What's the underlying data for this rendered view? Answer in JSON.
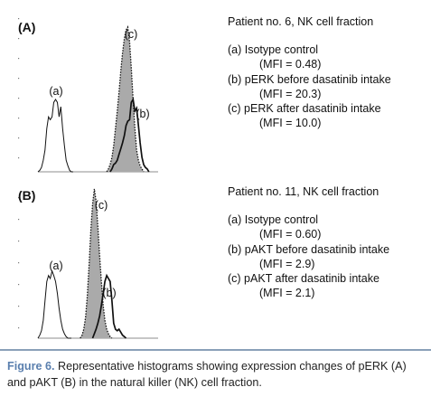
{
  "chart_data": [
    {
      "type": "histogram",
      "panel_label": "(A)",
      "title": "Patient no. 6, NK cell fraction",
      "series": [
        {
          "name": "(a) Isotype control",
          "label": "(a)",
          "style": "solid",
          "fill": "none",
          "mfi": "(MFI = 0.48)",
          "x": [
            0.5,
            0.6,
            0.7,
            0.8,
            0.9,
            1.0,
            1.1,
            1.2,
            1.3,
            1.4,
            1.5,
            1.6,
            1.7,
            1.8,
            1.9,
            2.0,
            2.1,
            2.2,
            2.3,
            2.4,
            2.5
          ],
          "y": [
            0,
            0.01,
            0.03,
            0.08,
            0.15,
            0.3,
            0.38,
            0.36,
            0.38,
            0.48,
            0.5,
            0.48,
            0.38,
            0.45,
            0.3,
            0.18,
            0.08,
            0.04,
            0.01,
            0,
            0
          ]
        },
        {
          "name": "(b) pERK before dasatinib intake",
          "label": "(b)",
          "style": "solid-bold",
          "fill": "none",
          "mfi": "(MFI = 20.3)",
          "x": [
            4.6,
            4.7,
            4.8,
            4.9,
            5.0,
            5.1,
            5.2,
            5.3,
            5.4,
            5.5,
            5.6,
            5.7,
            5.8,
            5.9,
            6.0,
            6.1,
            6.2,
            6.3,
            6.4,
            6.5,
            6.6,
            6.7,
            6.8
          ],
          "y": [
            0,
            0.02,
            0.05,
            0.06,
            0.08,
            0.12,
            0.16,
            0.2,
            0.25,
            0.32,
            0.35,
            0.36,
            0.48,
            0.5,
            0.42,
            0.44,
            0.32,
            0.2,
            0.1,
            0.05,
            0.03,
            0.02,
            0
          ]
        },
        {
          "name": "(c) pERK after dasatinib intake",
          "label": "(c)",
          "style": "dotted",
          "fill": "#aaaaaa",
          "mfi": "(MFI = 10.0)",
          "x": [
            4.4,
            4.5,
            4.6,
            4.7,
            4.8,
            4.9,
            5.0,
            5.1,
            5.2,
            5.3,
            5.4,
            5.5,
            5.6,
            5.7,
            5.8,
            5.9,
            6.0,
            6.1,
            6.2,
            6.3,
            6.4,
            6.5
          ],
          "y": [
            0,
            0.02,
            0.05,
            0.1,
            0.18,
            0.3,
            0.42,
            0.55,
            0.7,
            0.82,
            0.92,
            0.98,
            1.0,
            0.9,
            0.72,
            0.5,
            0.3,
            0.15,
            0.08,
            0.04,
            0.02,
            0
          ]
        }
      ]
    },
    {
      "type": "histogram",
      "panel_label": "(B)",
      "title": "Patient no. 11, NK cell fraction",
      "series": [
        {
          "name": "(a) Isotype control",
          "label": "(a)",
          "style": "solid",
          "fill": "none",
          "mfi": "(MFI = 0.60)",
          "x": [
            0.5,
            0.6,
            0.7,
            0.8,
            0.9,
            1.0,
            1.1,
            1.2,
            1.3,
            1.4,
            1.5,
            1.6,
            1.7,
            1.8,
            1.9,
            2.0,
            2.1,
            2.2,
            2.3,
            2.4
          ],
          "y": [
            0,
            0.02,
            0.05,
            0.12,
            0.25,
            0.38,
            0.42,
            0.4,
            0.45,
            0.42,
            0.38,
            0.3,
            0.2,
            0.12,
            0.06,
            0.03,
            0.01,
            0,
            0,
            0
          ]
        },
        {
          "name": "(b) pAKT before dasatinib intake",
          "label": "(b)",
          "style": "solid-bold",
          "fill": "none",
          "mfi": "(MFI = 2.9)",
          "x": [
            3.6,
            3.7,
            3.8,
            3.9,
            4.0,
            4.1,
            4.2,
            4.3,
            4.4,
            4.5,
            4.6,
            4.7,
            4.8,
            4.9,
            5.0,
            5.1,
            5.2,
            5.3,
            5.4,
            5.5
          ],
          "y": [
            0,
            0.03,
            0.06,
            0.1,
            0.15,
            0.22,
            0.3,
            0.38,
            0.42,
            0.4,
            0.38,
            0.25,
            0.1,
            0.06,
            0.05,
            0.06,
            0.04,
            0.02,
            0.01,
            0
          ]
        },
        {
          "name": "(c) pAKT after dasatinib intake",
          "label": "(c)",
          "style": "dotted",
          "fill": "#aaaaaa",
          "mfi": "(MFI = 2.1)",
          "x": [
            2.9,
            3.0,
            3.1,
            3.2,
            3.3,
            3.4,
            3.5,
            3.6,
            3.7,
            3.8,
            3.9,
            4.0,
            4.1,
            4.2,
            4.3,
            4.4,
            4.5,
            4.6,
            4.7
          ],
          "y": [
            0,
            0.02,
            0.06,
            0.14,
            0.28,
            0.48,
            0.72,
            0.9,
            1.0,
            0.92,
            0.75,
            0.55,
            0.38,
            0.22,
            0.12,
            0.06,
            0.03,
            0.01,
            0
          ]
        }
      ]
    }
  ],
  "caption": {
    "figure_label": "Figure 6.",
    "text": " Representative histograms showing expression changes of pERK (A) and pAKT (B) in the natural killer (NK) cell fraction."
  }
}
